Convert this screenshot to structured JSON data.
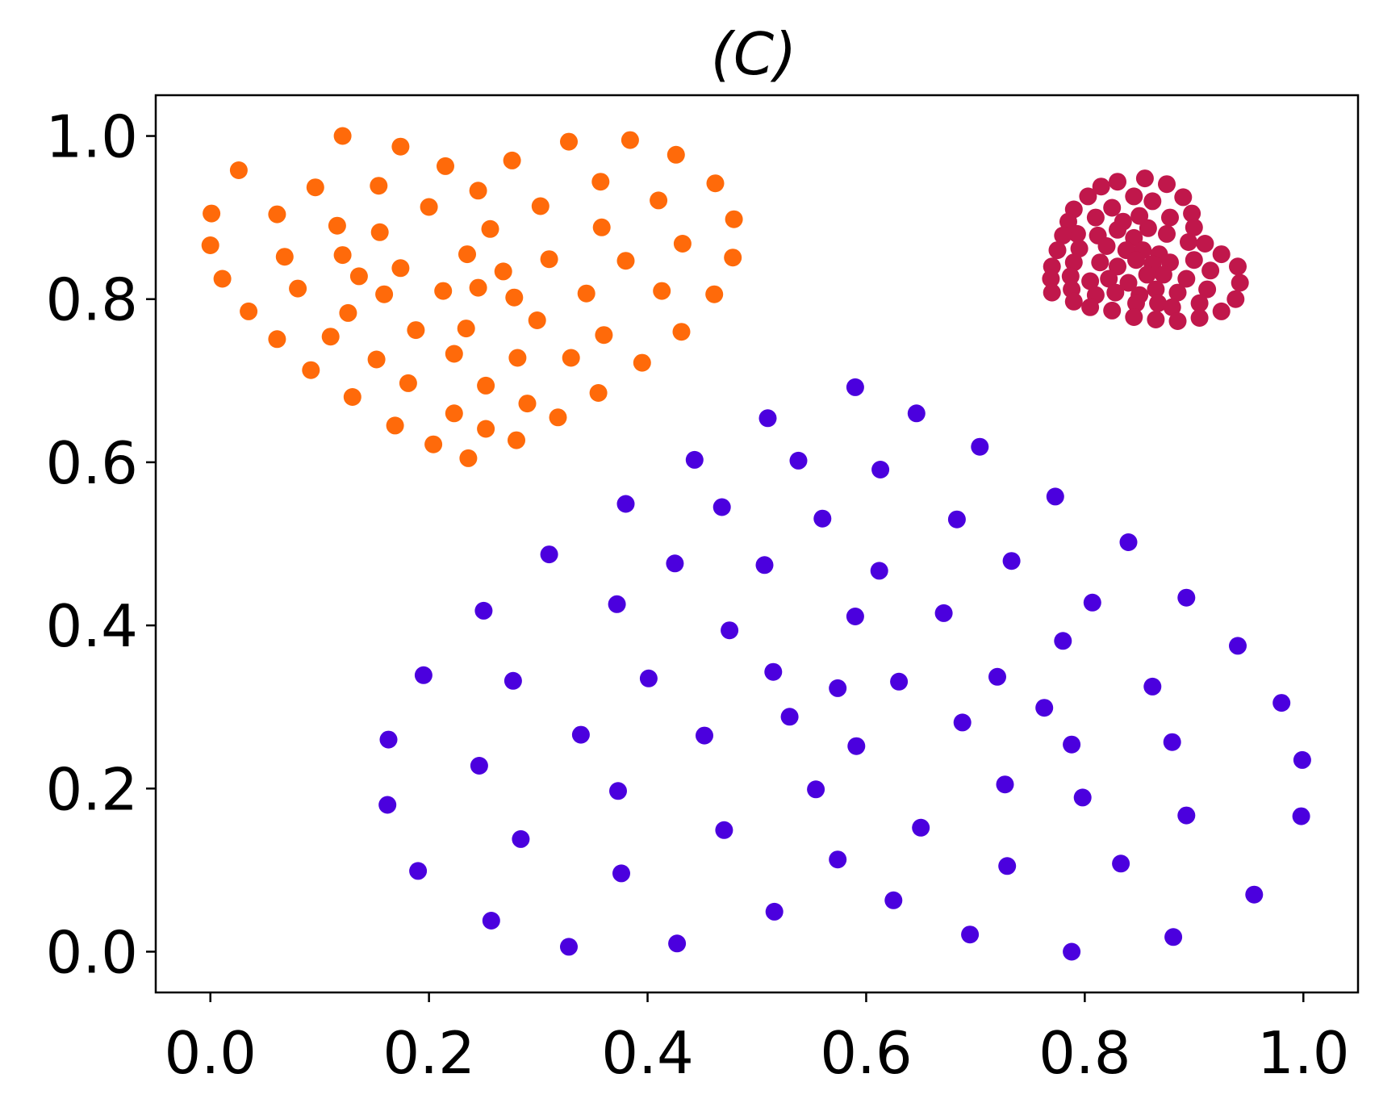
{
  "chart_data": {
    "type": "scatter",
    "title": "(C)",
    "xlabel": "",
    "ylabel": "",
    "xlim": [
      -0.05,
      1.05
    ],
    "ylim": [
      -0.05,
      1.05
    ],
    "xticks": [
      "0.0",
      "0.2",
      "0.4",
      "0.6",
      "0.8",
      "1.0"
    ],
    "yticks": [
      "0.0",
      "0.2",
      "0.4",
      "0.6",
      "0.8",
      "1.0"
    ],
    "grid": false,
    "legend": "none",
    "series": [
      {
        "color": "#4b00de",
        "points": [
          [
            0.59,
            0.692
          ],
          [
            0.646,
            0.66
          ],
          [
            0.51,
            0.654
          ],
          [
            0.704,
            0.619
          ],
          [
            0.443,
            0.603
          ],
          [
            0.538,
            0.602
          ],
          [
            0.613,
            0.591
          ],
          [
            0.38,
            0.549
          ],
          [
            0.468,
            0.545
          ],
          [
            0.773,
            0.558
          ],
          [
            0.56,
            0.531
          ],
          [
            0.683,
            0.53
          ],
          [
            0.84,
            0.502
          ],
          [
            0.31,
            0.487
          ],
          [
            0.425,
            0.476
          ],
          [
            0.507,
            0.474
          ],
          [
            0.733,
            0.479
          ],
          [
            0.612,
            0.467
          ],
          [
            0.372,
            0.426
          ],
          [
            0.25,
            0.418
          ],
          [
            0.807,
            0.428
          ],
          [
            0.893,
            0.434
          ],
          [
            0.59,
            0.411
          ],
          [
            0.671,
            0.415
          ],
          [
            0.475,
            0.394
          ],
          [
            0.78,
            0.381
          ],
          [
            0.94,
            0.375
          ],
          [
            0.195,
            0.339
          ],
          [
            0.277,
            0.332
          ],
          [
            0.401,
            0.335
          ],
          [
            0.515,
            0.343
          ],
          [
            0.574,
            0.323
          ],
          [
            0.63,
            0.331
          ],
          [
            0.72,
            0.337
          ],
          [
            0.862,
            0.325
          ],
          [
            0.98,
            0.305
          ],
          [
            0.763,
            0.299
          ],
          [
            0.53,
            0.288
          ],
          [
            0.688,
            0.281
          ],
          [
            0.163,
            0.26
          ],
          [
            0.339,
            0.266
          ],
          [
            0.452,
            0.265
          ],
          [
            0.591,
            0.252
          ],
          [
            0.788,
            0.254
          ],
          [
            0.88,
            0.257
          ],
          [
            0.246,
            0.228
          ],
          [
            0.999,
            0.235
          ],
          [
            0.373,
            0.197
          ],
          [
            0.554,
            0.199
          ],
          [
            0.727,
            0.205
          ],
          [
            0.798,
            0.189
          ],
          [
            0.162,
            0.18
          ],
          [
            0.893,
            0.167
          ],
          [
            0.998,
            0.166
          ],
          [
            0.47,
            0.149
          ],
          [
            0.65,
            0.152
          ],
          [
            0.284,
            0.138
          ],
          [
            0.574,
            0.113
          ],
          [
            0.729,
            0.105
          ],
          [
            0.833,
            0.108
          ],
          [
            0.19,
            0.099
          ],
          [
            0.376,
            0.096
          ],
          [
            0.955,
            0.07
          ],
          [
            0.625,
            0.063
          ],
          [
            0.516,
            0.049
          ],
          [
            0.257,
            0.038
          ],
          [
            0.695,
            0.021
          ],
          [
            0.881,
            0.018
          ],
          [
            0.328,
            0.006
          ],
          [
            0.427,
            0.01
          ],
          [
            0.788,
            0.0
          ]
        ]
      },
      {
        "color": "#ff6a0a",
        "points": [
          [
            0.121,
            1.0
          ],
          [
            0.026,
            0.958
          ],
          [
            0.174,
            0.987
          ],
          [
            0.215,
            0.963
          ],
          [
            0.276,
            0.97
          ],
          [
            0.328,
            0.993
          ],
          [
            0.384,
            0.995
          ],
          [
            0.426,
            0.977
          ],
          [
            0.096,
            0.937
          ],
          [
            0.154,
            0.939
          ],
          [
            0.245,
            0.933
          ],
          [
            0.357,
            0.944
          ],
          [
            0.462,
            0.942
          ],
          [
            0.001,
            0.905
          ],
          [
            0.061,
            0.904
          ],
          [
            0.2,
            0.913
          ],
          [
            0.302,
            0.914
          ],
          [
            0.41,
            0.921
          ],
          [
            0.479,
            0.898
          ],
          [
            0.116,
            0.89
          ],
          [
            0.155,
            0.882
          ],
          [
            0.256,
            0.886
          ],
          [
            0.358,
            0.888
          ],
          [
            0.0,
            0.866
          ],
          [
            0.068,
            0.852
          ],
          [
            0.121,
            0.854
          ],
          [
            0.174,
            0.838
          ],
          [
            0.235,
            0.855
          ],
          [
            0.268,
            0.834
          ],
          [
            0.31,
            0.849
          ],
          [
            0.38,
            0.847
          ],
          [
            0.432,
            0.868
          ],
          [
            0.478,
            0.851
          ],
          [
            0.011,
            0.825
          ],
          [
            0.08,
            0.813
          ],
          [
            0.136,
            0.828
          ],
          [
            0.159,
            0.806
          ],
          [
            0.213,
            0.81
          ],
          [
            0.245,
            0.814
          ],
          [
            0.278,
            0.802
          ],
          [
            0.344,
            0.807
          ],
          [
            0.413,
            0.81
          ],
          [
            0.461,
            0.806
          ],
          [
            0.035,
            0.785
          ],
          [
            0.126,
            0.783
          ],
          [
            0.299,
            0.774
          ],
          [
            0.061,
            0.751
          ],
          [
            0.11,
            0.754
          ],
          [
            0.188,
            0.762
          ],
          [
            0.234,
            0.764
          ],
          [
            0.36,
            0.756
          ],
          [
            0.431,
            0.76
          ],
          [
            0.152,
            0.726
          ],
          [
            0.223,
            0.733
          ],
          [
            0.281,
            0.728
          ],
          [
            0.33,
            0.728
          ],
          [
            0.395,
            0.722
          ],
          [
            0.092,
            0.713
          ],
          [
            0.181,
            0.697
          ],
          [
            0.252,
            0.694
          ],
          [
            0.13,
            0.68
          ],
          [
            0.355,
            0.685
          ],
          [
            0.29,
            0.672
          ],
          [
            0.223,
            0.66
          ],
          [
            0.318,
            0.655
          ],
          [
            0.169,
            0.645
          ],
          [
            0.252,
            0.641
          ],
          [
            0.28,
            0.627
          ],
          [
            0.204,
            0.622
          ],
          [
            0.236,
            0.605
          ]
        ]
      },
      {
        "color": "#c0174b",
        "points": [
          [
            0.855,
            0.948
          ],
          [
            0.83,
            0.944
          ],
          [
            0.815,
            0.938
          ],
          [
            0.875,
            0.941
          ],
          [
            0.803,
            0.926
          ],
          [
            0.845,
            0.926
          ],
          [
            0.89,
            0.925
          ],
          [
            0.79,
            0.91
          ],
          [
            0.825,
            0.912
          ],
          [
            0.862,
            0.92
          ],
          [
            0.81,
            0.9
          ],
          [
            0.835,
            0.895
          ],
          [
            0.85,
            0.902
          ],
          [
            0.878,
            0.9
          ],
          [
            0.898,
            0.905
          ],
          [
            0.785,
            0.895
          ],
          [
            0.793,
            0.88
          ],
          [
            0.812,
            0.878
          ],
          [
            0.83,
            0.885
          ],
          [
            0.845,
            0.875
          ],
          [
            0.858,
            0.887
          ],
          [
            0.875,
            0.88
          ],
          [
            0.9,
            0.888
          ],
          [
            0.78,
            0.878
          ],
          [
            0.775,
            0.86
          ],
          [
            0.795,
            0.862
          ],
          [
            0.82,
            0.865
          ],
          [
            0.838,
            0.86
          ],
          [
            0.853,
            0.86
          ],
          [
            0.868,
            0.855
          ],
          [
            0.895,
            0.87
          ],
          [
            0.91,
            0.868
          ],
          [
            0.77,
            0.84
          ],
          [
            0.79,
            0.845
          ],
          [
            0.814,
            0.845
          ],
          [
            0.83,
            0.84
          ],
          [
            0.847,
            0.848
          ],
          [
            0.862,
            0.843
          ],
          [
            0.878,
            0.845
          ],
          [
            0.9,
            0.848
          ],
          [
            0.925,
            0.855
          ],
          [
            0.94,
            0.84
          ],
          [
            0.769,
            0.825
          ],
          [
            0.787,
            0.828
          ],
          [
            0.805,
            0.822
          ],
          [
            0.822,
            0.825
          ],
          [
            0.84,
            0.82
          ],
          [
            0.857,
            0.83
          ],
          [
            0.872,
            0.83
          ],
          [
            0.893,
            0.825
          ],
          [
            0.915,
            0.835
          ],
          [
            0.942,
            0.82
          ],
          [
            0.77,
            0.808
          ],
          [
            0.788,
            0.812
          ],
          [
            0.81,
            0.805
          ],
          [
            0.828,
            0.808
          ],
          [
            0.85,
            0.805
          ],
          [
            0.865,
            0.812
          ],
          [
            0.885,
            0.808
          ],
          [
            0.912,
            0.812
          ],
          [
            0.938,
            0.8
          ],
          [
            0.79,
            0.797
          ],
          [
            0.805,
            0.79
          ],
          [
            0.825,
            0.786
          ],
          [
            0.847,
            0.795
          ],
          [
            0.867,
            0.795
          ],
          [
            0.88,
            0.79
          ],
          [
            0.905,
            0.795
          ],
          [
            0.925,
            0.785
          ],
          [
            0.845,
            0.778
          ],
          [
            0.865,
            0.775
          ],
          [
            0.885,
            0.773
          ],
          [
            0.905,
            0.777
          ]
        ]
      }
    ]
  }
}
